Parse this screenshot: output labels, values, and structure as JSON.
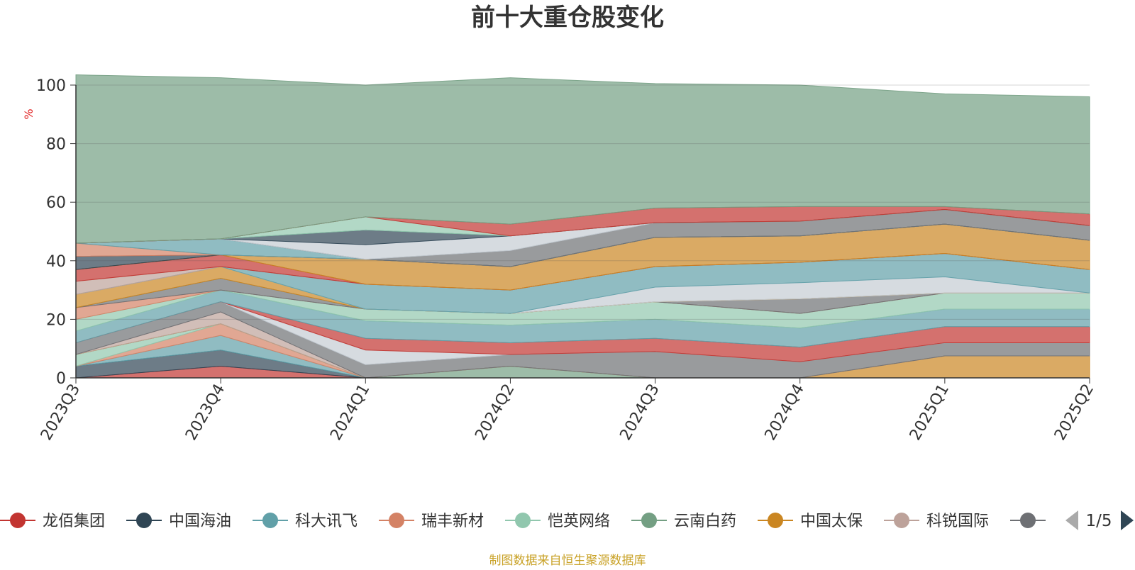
{
  "chart_data": {
    "type": "area",
    "title": "前十大重仓股变化",
    "ylabel": "%",
    "ylim": [
      0,
      100
    ],
    "yticks": [
      0,
      20,
      40,
      60,
      80,
      100
    ],
    "grid": true,
    "stacked": true,
    "categories": [
      "2023Q3",
      "2023Q4",
      "2024Q1",
      "2024Q2",
      "2024Q3",
      "2024Q4",
      "2025Q1",
      "2025Q2"
    ],
    "series": [
      {
        "name": "龙佰集团",
        "color": "#c23531",
        "values": [
          0,
          4,
          0,
          0,
          0,
          0,
          0,
          0
        ]
      },
      {
        "name": "中国海油",
        "color": "#2f4554",
        "values": [
          4,
          5.5,
          0,
          0,
          0,
          0,
          0,
          0
        ]
      },
      {
        "name": "科大讯飞",
        "color": "#61a0a8",
        "values": [
          0,
          5,
          0,
          0,
          0,
          0,
          0,
          0
        ]
      },
      {
        "name": "瑞丰新材",
        "color": "#d48265",
        "values": [
          0,
          4,
          0,
          0,
          0,
          0,
          0,
          0
        ]
      },
      {
        "name": "恺英网络",
        "color": "#91c7ae",
        "values": [
          4,
          0,
          0,
          0,
          0,
          0,
          0,
          0
        ]
      },
      {
        "name": "云南白药",
        "color": "#749f83",
        "values": [
          0,
          0,
          0,
          4,
          0,
          0,
          0,
          0
        ]
      },
      {
        "name": "中国太保",
        "color": "#ca8622",
        "values": [
          0,
          0,
          0,
          0,
          0,
          0,
          7.5,
          7.5
        ]
      },
      {
        "name": "科锐国际",
        "color": "#bda29a",
        "values": [
          0,
          4,
          0,
          0,
          0,
          0,
          0,
          0
        ]
      },
      {
        "name": "",
        "color": "#6e7074",
        "values": [
          4,
          3.5,
          4.5,
          4,
          9,
          5.5,
          4.5,
          4.5
        ]
      },
      {
        "name": "",
        "color": "#c4ccd3",
        "values": [
          0,
          0,
          5,
          0,
          0,
          0,
          0,
          0
        ]
      },
      {
        "name": "",
        "color": "#c23531",
        "values": [
          0,
          0,
          4,
          4,
          4.5,
          5,
          5.5,
          5.5
        ]
      },
      {
        "name": "",
        "color": "#61a0a8",
        "values": [
          4,
          4,
          6,
          6,
          6.5,
          6.5,
          6,
          6
        ]
      },
      {
        "name": "",
        "color": "#91c7ae",
        "values": [
          4,
          0,
          4,
          4,
          6,
          5,
          5.5,
          5.5
        ]
      },
      {
        "name": "",
        "color": "#d48265",
        "values": [
          4,
          0,
          0,
          0,
          0,
          0,
          0,
          0
        ]
      },
      {
        "name": "",
        "color": "#6e7074",
        "values": [
          0,
          4,
          0,
          0,
          0,
          5,
          0,
          0
        ]
      },
      {
        "name": "",
        "color": "#ca8622",
        "values": [
          4.5,
          4,
          0,
          0,
          0,
          0,
          0,
          0
        ]
      },
      {
        "name": "",
        "color": "#c4ccd3",
        "values": [
          0,
          0,
          0,
          0,
          5,
          5.5,
          5.5,
          0
        ]
      },
      {
        "name": "",
        "color": "#61a0a8",
        "values": [
          0,
          0,
          8.5,
          8,
          7,
          7,
          8,
          8
        ]
      },
      {
        "name": "",
        "color": "#bda29a",
        "values": [
          4.5,
          0,
          0,
          0,
          0,
          0,
          0,
          0
        ]
      },
      {
        "name": "",
        "color": "#c23531",
        "values": [
          4,
          4,
          0,
          0,
          0,
          0,
          0,
          0
        ]
      },
      {
        "name": "",
        "color": "#ca8622",
        "values": [
          0,
          0,
          8.5,
          8,
          10,
          9,
          10,
          10
        ]
      },
      {
        "name": "",
        "color": "#2f4554",
        "values": [
          4.5,
          0,
          0,
          0,
          0,
          0,
          0,
          0
        ]
      },
      {
        "name": "",
        "color": "#d48265",
        "values": [
          4.5,
          0,
          0,
          0,
          0,
          0,
          0,
          0
        ]
      },
      {
        "name": "",
        "color": "#61a0a8",
        "values": [
          0,
          5.5,
          0,
          0,
          0,
          0,
          0,
          0
        ]
      },
      {
        "name": "",
        "color": "#6e7074",
        "values": [
          0,
          0,
          0,
          5.5,
          5,
          5,
          5,
          5
        ]
      },
      {
        "name": "",
        "color": "#c4ccd3",
        "values": [
          0,
          0,
          5,
          5,
          0,
          0,
          0,
          0
        ]
      },
      {
        "name": "",
        "color": "#2f4554",
        "values": [
          0,
          0,
          5,
          0,
          0,
          0,
          0,
          0
        ]
      },
      {
        "name": "",
        "color": "#91c7ae",
        "values": [
          0,
          0,
          4.5,
          0,
          0,
          0,
          0,
          0
        ]
      },
      {
        "name": "",
        "color": "#c23531",
        "values": [
          0,
          0,
          0,
          4,
          5,
          5,
          1,
          4
        ]
      },
      {
        "name": "",
        "color": "#749f83",
        "values": [
          57.5,
          55,
          45,
          50,
          42.5,
          41.5,
          38.5,
          40
        ]
      }
    ]
  },
  "legend": {
    "items": [
      {
        "label": "龙佰集团",
        "color": "#c23531"
      },
      {
        "label": "中国海油",
        "color": "#2f4554"
      },
      {
        "label": "科大讯飞",
        "color": "#61a0a8"
      },
      {
        "label": "瑞丰新材",
        "color": "#d48265"
      },
      {
        "label": "恺英网络",
        "color": "#91c7ae"
      },
      {
        "label": "云南白药",
        "color": "#749f83"
      },
      {
        "label": "中国太保",
        "color": "#ca8622"
      },
      {
        "label": "科锐国际",
        "color": "#bda29a"
      },
      {
        "label": "",
        "color": "#6e7074"
      }
    ],
    "page_text": "1/5"
  },
  "source_note": "制图数据来自恒生聚源数据库"
}
